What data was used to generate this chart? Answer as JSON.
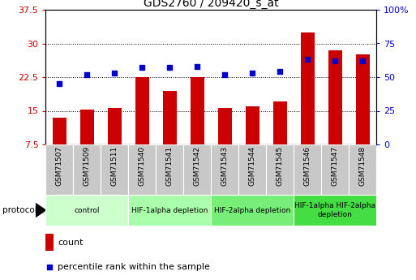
{
  "title": "GDS2760 / 209420_s_at",
  "samples": [
    "GSM71507",
    "GSM71509",
    "GSM71511",
    "GSM71540",
    "GSM71541",
    "GSM71542",
    "GSM71543",
    "GSM71544",
    "GSM71545",
    "GSM71546",
    "GSM71547",
    "GSM71548"
  ],
  "counts": [
    13.5,
    15.3,
    15.7,
    22.5,
    19.5,
    22.5,
    15.7,
    16.0,
    17.0,
    32.5,
    28.5,
    27.5
  ],
  "percentile_ranks": [
    45,
    52,
    53,
    57,
    57,
    58,
    52,
    53,
    54,
    63,
    62,
    62
  ],
  "bar_color": "#cc0000",
  "dot_color": "#0000cc",
  "left_yticks": [
    7.5,
    15.0,
    22.5,
    30.0,
    37.5
  ],
  "left_ytick_labels": [
    "7.5",
    "15",
    "22.5",
    "30",
    "37.5"
  ],
  "right_yticks": [
    0,
    25,
    50,
    75,
    100
  ],
  "right_ytick_labels": [
    "0",
    "25",
    "50",
    "75",
    "100%"
  ],
  "ylim_left": [
    7.5,
    37.5
  ],
  "ylim_right": [
    0,
    100
  ],
  "groups": [
    {
      "label": "control",
      "start": 0,
      "end": 3,
      "color": "#ccffcc"
    },
    {
      "label": "HIF-1alpha depletion",
      "start": 3,
      "end": 6,
      "color": "#aaffaa"
    },
    {
      "label": "HIF-2alpha depletion",
      "start": 6,
      "end": 9,
      "color": "#77ee77"
    },
    {
      "label": "HIF-1alpha HIF-2alpha\ndepletion",
      "start": 9,
      "end": 12,
      "color": "#44dd44"
    }
  ],
  "protocol_label": "protocol",
  "legend_count_label": "count",
  "legend_pct_label": "percentile rank within the sample",
  "bar_color_left": "#cc0000",
  "tick_color_left": "#cc0000",
  "tick_color_right": "#0000cc",
  "bar_width": 0.5,
  "sample_bg_color": "#c8c8c8",
  "figsize": [
    5.13,
    3.45
  ],
  "dpi": 100
}
